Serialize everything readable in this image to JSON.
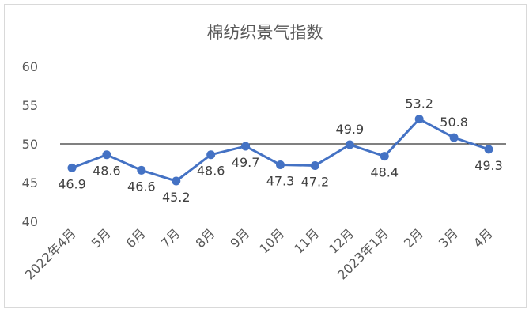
{
  "chart_data": {
    "type": "line",
    "title": "棉纺织景气指数",
    "categories": [
      "2022年4月",
      "5月",
      "6月",
      "7月",
      "8月",
      "9月",
      "10月",
      "11月",
      "12月",
      "2023年1月",
      "2月",
      "3月",
      "4月"
    ],
    "series": [
      {
        "values": [
          46.9,
          48.6,
          46.6,
          45.2,
          48.6,
          49.7,
          47.3,
          47.2,
          49.9,
          48.4,
          53.2,
          50.8,
          49.3
        ]
      }
    ],
    "data_labels": [
      "46.9",
      "48.6",
      "46.6",
      "45.2",
      "48.6",
      "49.7",
      "47.3",
      "47.2",
      "49.9",
      "48.4",
      "53.2",
      "50.8",
      "49.3"
    ],
    "ylim": [
      40,
      60
    ],
    "yticks": [
      "40",
      "45",
      "50",
      "55",
      "60"
    ],
    "reference_line": 50,
    "grid": false,
    "legend": "none",
    "colors": {
      "series": "#4472c4",
      "reference": "#000000",
      "text": "#595959"
    }
  }
}
